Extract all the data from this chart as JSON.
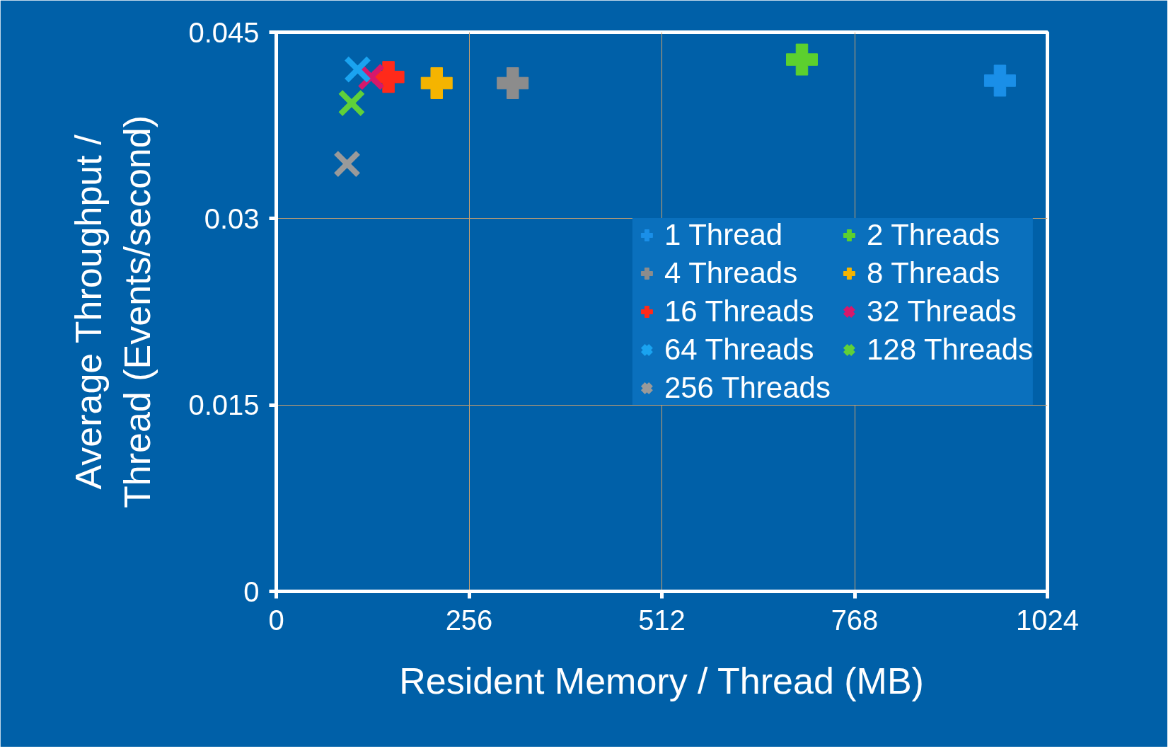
{
  "chart_data": {
    "type": "scatter",
    "xlabel": "Resident Memory / Thread (MB)",
    "ylabel": "Average Throughput /\nThread (Events/second)",
    "xlim": [
      0,
      1024
    ],
    "xticks": [
      0,
      256,
      512,
      768,
      1024
    ],
    "ylim": [
      0,
      0.045
    ],
    "yticks": [
      0,
      0.015,
      0.03,
      0.045
    ],
    "grid": true,
    "legend": "right",
    "series": [
      {
        "name": "1 Thread",
        "color": "#1a8fe8",
        "marker": "cross",
        "x": [
          961
        ],
        "values": [
          0.0411
        ]
      },
      {
        "name": "2 Threads",
        "color": "#5cd02e",
        "marker": "cross",
        "x": [
          698
        ],
        "values": [
          0.0428
        ]
      },
      {
        "name": "4 Threads",
        "color": "#8c8c8c",
        "marker": "cross",
        "x": [
          314
        ],
        "values": [
          0.0409
        ]
      },
      {
        "name": "8 Threads",
        "color": "#f5b400",
        "marker": "cross",
        "x": [
          213
        ],
        "values": [
          0.0409
        ]
      },
      {
        "name": "16 Threads",
        "color": "#ff2a1a",
        "marker": "cross",
        "x": [
          149
        ],
        "values": [
          0.0414
        ]
      },
      {
        "name": "32 Threads",
        "color": "#d6186b",
        "marker": "x",
        "x": [
          126
        ],
        "values": [
          0.0414
        ]
      },
      {
        "name": "64 Threads",
        "color": "#1aa3f0",
        "marker": "x",
        "x": [
          108
        ],
        "values": [
          0.042
        ]
      },
      {
        "name": "128 Threads",
        "color": "#5fd03a",
        "marker": "x",
        "x": [
          100
        ],
        "values": [
          0.0393
        ]
      },
      {
        "name": "256 Threads",
        "color": "#9a9a9a",
        "marker": "x",
        "x": [
          94
        ],
        "values": [
          0.0344
        ]
      }
    ]
  }
}
